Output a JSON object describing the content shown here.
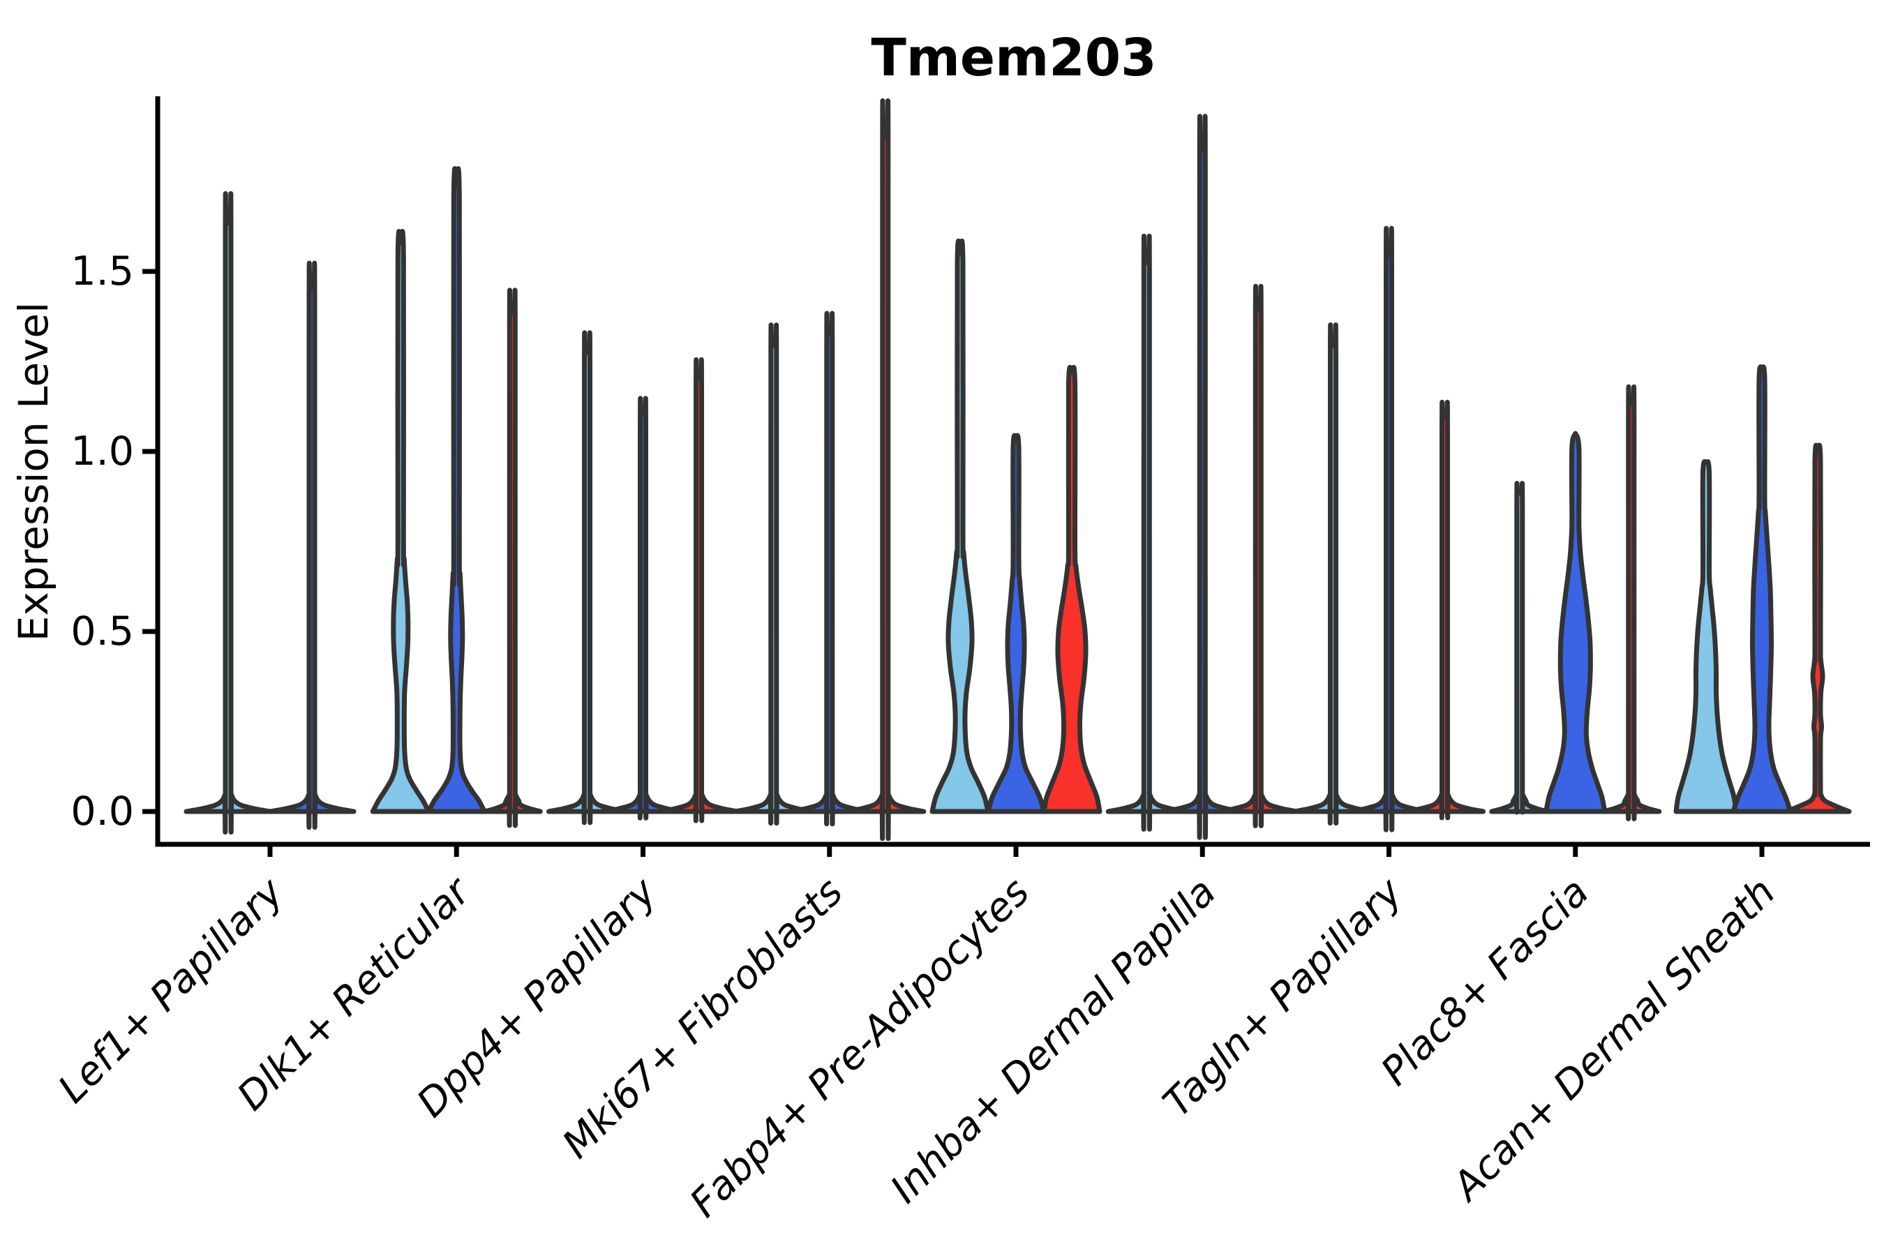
{
  "title": "Tmem203",
  "y_axis": {
    "label": "Expression Level",
    "ticks": [
      {
        "value": 0.0,
        "label": "0.0"
      },
      {
        "value": 0.5,
        "label": "0.5"
      },
      {
        "value": 1.0,
        "label": "1.0"
      },
      {
        "value": 1.5,
        "label": "1.5"
      }
    ]
  },
  "colors": {
    "sample1_lightblue": "#84C7E8",
    "sample2_blue": "#3A64E4",
    "sample3_red": "#F8322B",
    "outline": "#333333",
    "axis": "#000000"
  },
  "chart_data": {
    "type": "violin",
    "title": "Tmem203",
    "ylabel": "Expression Level",
    "ylim": [
      -0.09,
      1.99
    ],
    "yticks": [
      0.0,
      0.5,
      1.0,
      1.5
    ],
    "grid": false,
    "legend": "none",
    "x_categories": [
      "Lef1+ Papillary",
      "Dlk1+ Reticular",
      "Dpp4+ Papillary",
      "Mki67+ Fibroblasts",
      "Fabp4+ Pre-Adipocytes",
      "Inhba+ Dermal Papilla",
      "Tagln+ Papillary",
      "Plac8+ Fascia",
      "Acan+ Dermal Sheath"
    ],
    "groups": [
      {
        "label": "Lef1+ Papillary",
        "violins": [
          {
            "sample": "s1",
            "color": "lightblue",
            "offset": -60,
            "max": 1.64,
            "shape": "flat",
            "base_hw": 60
          },
          {
            "sample": "s2",
            "color": "blue",
            "offset": 60,
            "max": 1.46,
            "shape": "flat",
            "base_hw": 60
          }
        ]
      },
      {
        "label": "Dlk1+ Reticular",
        "violins": [
          {
            "sample": "s1",
            "color": "lightblue",
            "offset": -80,
            "max": 1.58,
            "shape": "profile",
            "profile": [
              [
                0,
                40
              ],
              [
                0.03,
                32
              ],
              [
                0.06,
                22
              ],
              [
                0.09,
                13
              ],
              [
                0.12,
                8
              ],
              [
                0.17,
                5.5
              ],
              [
                0.25,
                5
              ],
              [
                0.33,
                5.5
              ],
              [
                0.4,
                8
              ],
              [
                0.46,
                10
              ],
              [
                0.52,
                10.5
              ],
              [
                0.58,
                9.5
              ],
              [
                0.64,
                7
              ],
              [
                0.7,
                5
              ],
              [
                0.76,
                4
              ],
              [
                1.54,
                4
              ],
              [
                1.58,
                0
              ]
            ]
          },
          {
            "sample": "s2",
            "color": "blue",
            "offset": 0,
            "max": 1.74,
            "shape": "profile",
            "profile": [
              [
                0,
                40
              ],
              [
                0.03,
                32
              ],
              [
                0.06,
                21
              ],
              [
                0.09,
                12
              ],
              [
                0.12,
                7
              ],
              [
                0.17,
                5
              ],
              [
                0.28,
                5
              ],
              [
                0.36,
                6
              ],
              [
                0.42,
                7.5
              ],
              [
                0.48,
                8.5
              ],
              [
                0.54,
                8
              ],
              [
                0.6,
                6.5
              ],
              [
                0.66,
                5
              ],
              [
                0.72,
                4
              ],
              [
                1.7,
                4
              ],
              [
                1.74,
                0
              ]
            ]
          },
          {
            "sample": "s3",
            "color": "red",
            "offset": 80,
            "max": 1.39,
            "shape": "flat",
            "base_hw": 40
          }
        ]
      },
      {
        "label": "Dpp4+ Papillary",
        "violins": [
          {
            "sample": "s1",
            "color": "lightblue",
            "offset": -80,
            "max": 1.28,
            "shape": "flat",
            "base_hw": 55
          },
          {
            "sample": "s2",
            "color": "blue",
            "offset": 0,
            "max": 1.11,
            "shape": "flat",
            "base_hw": 55
          },
          {
            "sample": "s3",
            "color": "red",
            "offset": 80,
            "max": 1.21,
            "shape": "flat",
            "base_hw": 55
          }
        ]
      },
      {
        "label": "Mki67+ Fibroblasts",
        "violins": [
          {
            "sample": "s1",
            "color": "lightblue",
            "offset": -80,
            "max": 1.3,
            "shape": "flat",
            "base_hw": 55
          },
          {
            "sample": "s2",
            "color": "blue",
            "offset": 0,
            "max": 1.33,
            "shape": "flat",
            "base_hw": 55
          },
          {
            "sample": "s3",
            "color": "red",
            "offset": 80,
            "max": 1.88,
            "shape": "flat",
            "base_hw": 55
          }
        ]
      },
      {
        "label": "Fabp4+ Pre-Adipocytes",
        "violins": [
          {
            "sample": "s1",
            "color": "lightblue",
            "offset": -80,
            "max": 1.55,
            "shape": "profile",
            "profile": [
              [
                0,
                40
              ],
              [
                0.04,
                35
              ],
              [
                0.08,
                26
              ],
              [
                0.12,
                16
              ],
              [
                0.16,
                10
              ],
              [
                0.21,
                7.5
              ],
              [
                0.27,
                7
              ],
              [
                0.33,
                9
              ],
              [
                0.4,
                14
              ],
              [
                0.47,
                17
              ],
              [
                0.53,
                16
              ],
              [
                0.6,
                12
              ],
              [
                0.66,
                8
              ],
              [
                0.72,
                5
              ],
              [
                0.78,
                4
              ],
              [
                1.52,
                4
              ],
              [
                1.55,
                0
              ]
            ]
          },
          {
            "sample": "s2",
            "color": "blue",
            "offset": 0,
            "max": 1.04,
            "shape": "profile",
            "profile": [
              [
                0,
                40
              ],
              [
                0.04,
                34
              ],
              [
                0.08,
                24
              ],
              [
                0.12,
                14
              ],
              [
                0.16,
                9
              ],
              [
                0.22,
                6.5
              ],
              [
                0.28,
                6.5
              ],
              [
                0.34,
                8.5
              ],
              [
                0.4,
                11
              ],
              [
                0.46,
                12
              ],
              [
                0.52,
                11
              ],
              [
                0.58,
                8
              ],
              [
                0.64,
                5.5
              ],
              [
                0.7,
                4
              ],
              [
                1.01,
                4
              ],
              [
                1.04,
                0
              ]
            ]
          },
          {
            "sample": "s3",
            "color": "red",
            "offset": 80,
            "max": 1.22,
            "shape": "profile",
            "profile": [
              [
                0,
                40
              ],
              [
                0.04,
                36
              ],
              [
                0.08,
                28
              ],
              [
                0.13,
                18
              ],
              [
                0.18,
                13
              ],
              [
                0.24,
                11.5
              ],
              [
                0.3,
                13
              ],
              [
                0.37,
                17.5
              ],
              [
                0.44,
                20
              ],
              [
                0.5,
                19
              ],
              [
                0.56,
                15
              ],
              [
                0.62,
                10
              ],
              [
                0.68,
                6
              ],
              [
                0.74,
                4.5
              ],
              [
                1.19,
                4.5
              ],
              [
                1.22,
                0
              ]
            ]
          }
        ]
      },
      {
        "label": "Inhba+ Dermal Papilla",
        "violins": [
          {
            "sample": "s1",
            "color": "lightblue",
            "offset": -80,
            "max": 1.53,
            "shape": "flat",
            "base_hw": 55
          },
          {
            "sample": "s2",
            "color": "blue",
            "offset": 0,
            "max": 1.84,
            "shape": "flat",
            "base_hw": 55
          },
          {
            "sample": "s3",
            "color": "red",
            "offset": 80,
            "max": 1.4,
            "shape": "flat",
            "base_hw": 55
          }
        ]
      },
      {
        "label": "Tagln+ Papillary",
        "violins": [
          {
            "sample": "s1",
            "color": "lightblue",
            "offset": -80,
            "max": 1.3,
            "shape": "flat",
            "base_hw": 55
          },
          {
            "sample": "s2",
            "color": "blue",
            "offset": 0,
            "max": 1.55,
            "shape": "flat",
            "base_hw": 55
          },
          {
            "sample": "s3",
            "color": "red",
            "offset": 80,
            "max": 1.1,
            "shape": "flat",
            "base_hw": 55
          }
        ]
      },
      {
        "label": "Plac8+ Fascia",
        "violins": [
          {
            "sample": "s1",
            "color": "lightblue",
            "offset": -80,
            "max": 0.89,
            "shape": "flat",
            "base_hw": 40
          },
          {
            "sample": "s2",
            "color": "blue",
            "offset": 0,
            "max": 1.05,
            "shape": "profile",
            "profile": [
              [
                0,
                42
              ],
              [
                0.04,
                38
              ],
              [
                0.08,
                31
              ],
              [
                0.12,
                24
              ],
              [
                0.17,
                18
              ],
              [
                0.22,
                15.5
              ],
              [
                0.28,
                17
              ],
              [
                0.34,
                20
              ],
              [
                0.4,
                21.5
              ],
              [
                0.47,
                21
              ],
              [
                0.53,
                18.5
              ],
              [
                0.59,
                15
              ],
              [
                0.65,
                11
              ],
              [
                0.71,
                7.5
              ],
              [
                0.77,
                5.5
              ],
              [
                0.82,
                5
              ],
              [
                1.01,
                5
              ],
              [
                1.05,
                0
              ]
            ]
          },
          {
            "sample": "s3",
            "color": "red",
            "offset": 80,
            "max": 1.14,
            "shape": "flat",
            "base_hw": 40
          }
        ]
      },
      {
        "label": "Acan+ Dermal Sheath",
        "violins": [
          {
            "sample": "s1",
            "color": "lightblue",
            "offset": -80,
            "max": 0.97,
            "shape": "profile",
            "profile": [
              [
                0,
                43
              ],
              [
                0.04,
                40
              ],
              [
                0.08,
                34
              ],
              [
                0.12,
                28
              ],
              [
                0.16,
                23
              ],
              [
                0.21,
                19
              ],
              [
                0.27,
                16
              ],
              [
                0.33,
                14.5
              ],
              [
                0.39,
                14.5
              ],
              [
                0.45,
                13.5
              ],
              [
                0.51,
                11.5
              ],
              [
                0.57,
                8.5
              ],
              [
                0.62,
                6
              ],
              [
                0.67,
                4.5
              ],
              [
                0.94,
                4.5
              ],
              [
                0.97,
                0
              ]
            ]
          },
          {
            "sample": "s2",
            "color": "blue",
            "offset": 0,
            "max": 1.23,
            "shape": "profile",
            "profile": [
              [
                0,
                41
              ],
              [
                0.04,
                34
              ],
              [
                0.08,
                25
              ],
              [
                0.12,
                17
              ],
              [
                0.17,
                12
              ],
              [
                0.23,
                10
              ],
              [
                0.3,
                11
              ],
              [
                0.38,
                12.5
              ],
              [
                0.46,
                13.5
              ],
              [
                0.54,
                13
              ],
              [
                0.62,
                12
              ],
              [
                0.7,
                9.5
              ],
              [
                0.77,
                7
              ],
              [
                0.83,
                5
              ],
              [
                0.88,
                4
              ],
              [
                1.2,
                4
              ],
              [
                1.23,
                0
              ]
            ]
          },
          {
            "sample": "s3",
            "color": "red",
            "offset": 80,
            "max": 1.0,
            "shape": "profile",
            "profile": [
              [
                0,
                45
              ],
              [
                0.015,
                26
              ],
              [
                0.03,
                10
              ],
              [
                0.045,
                5
              ],
              [
                0.06,
                4
              ],
              [
                0.2,
                4
              ],
              [
                0.235,
                5.5
              ],
              [
                0.27,
                4
              ],
              [
                0.33,
                4.5
              ],
              [
                0.375,
                7
              ],
              [
                0.42,
                4.5
              ],
              [
                0.47,
                4
              ],
              [
                0.97,
                4
              ],
              [
                1.0,
                0
              ]
            ]
          }
        ]
      }
    ]
  }
}
